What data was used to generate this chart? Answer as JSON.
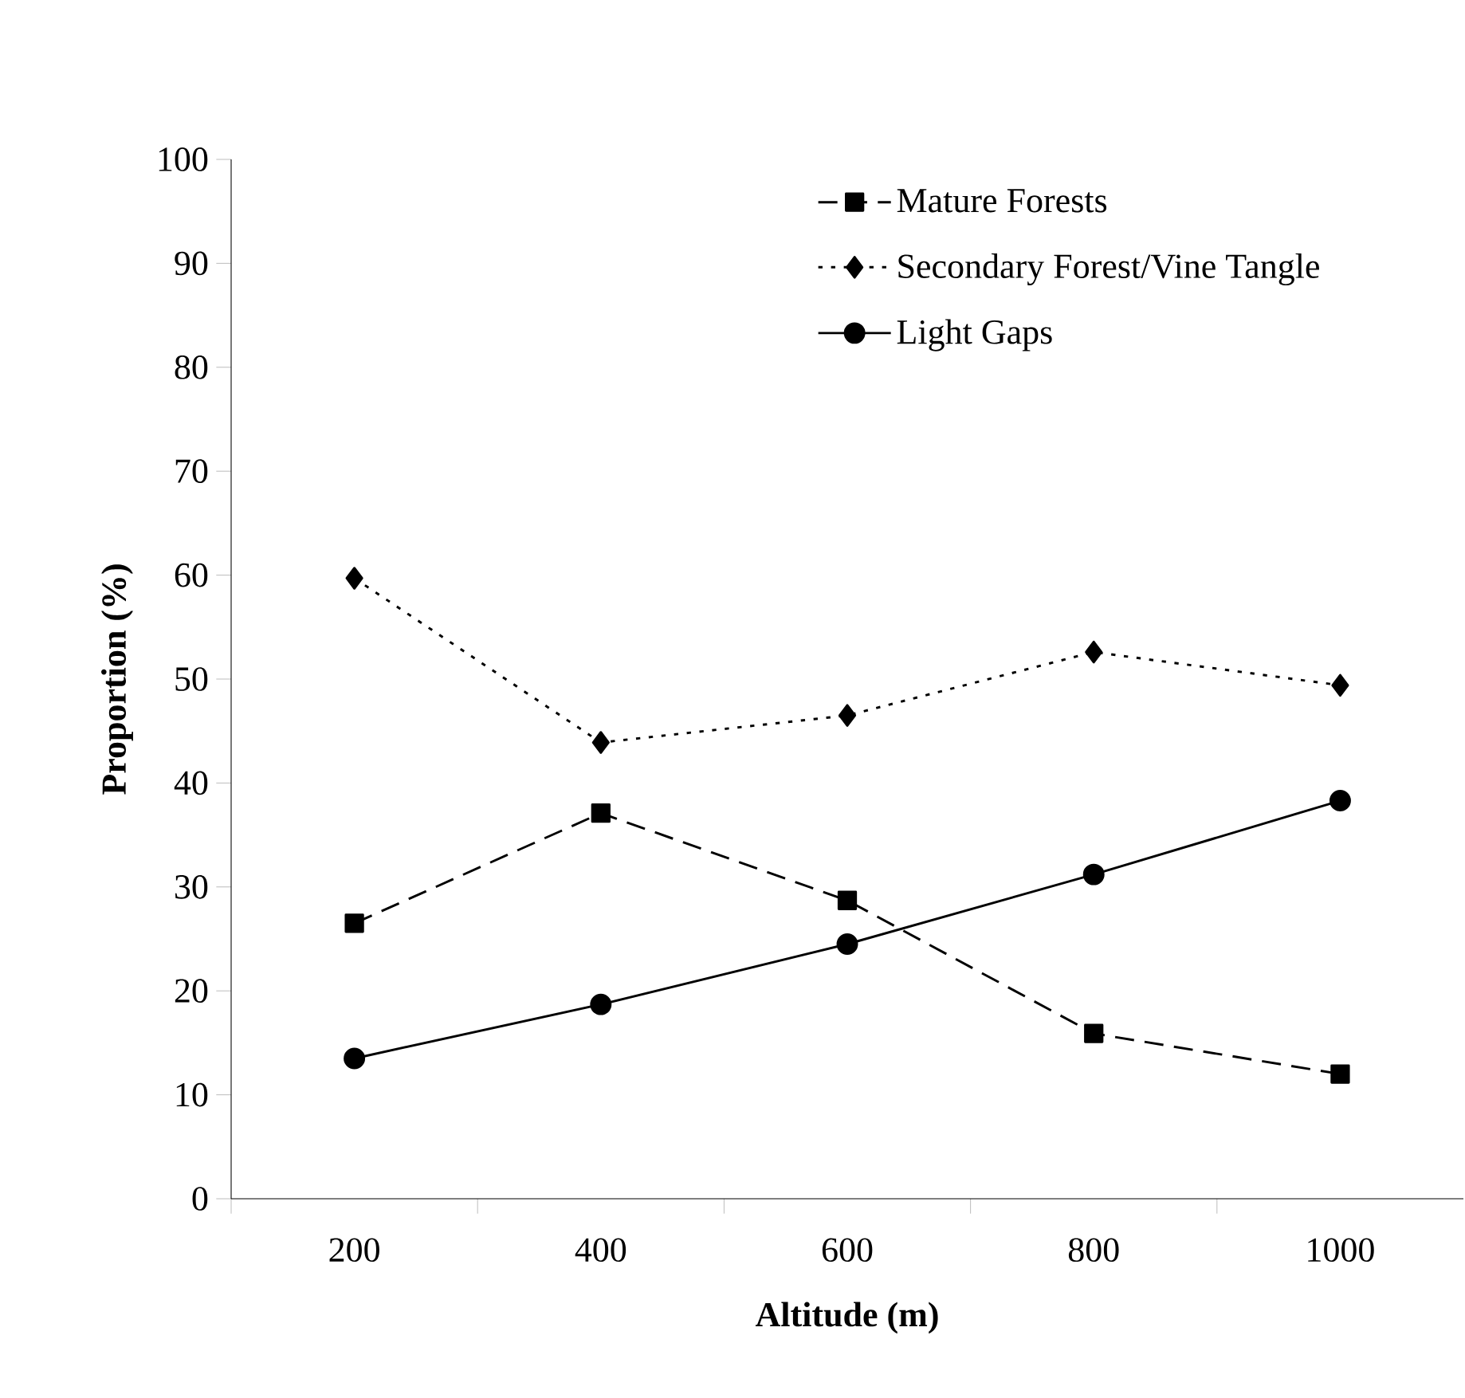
{
  "chart_data": {
    "type": "line",
    "xlabel": "Altitude (m)",
    "ylabel": "Proportion (%)",
    "categories": [
      "200",
      "400",
      "600",
      "800",
      "1000"
    ],
    "series": [
      {
        "name": "Mature Forests",
        "color": "#000000",
        "marker": "square",
        "line_style": "dashed",
        "values": [
          26.5,
          37.1,
          28.7,
          15.9,
          12.0
        ]
      },
      {
        "name": "Secondary Forest/Vine Tangle",
        "color": "#000000",
        "marker": "diamond",
        "line_style": "dotted",
        "values": [
          59.7,
          43.9,
          46.5,
          52.6,
          49.4
        ]
      },
      {
        "name": "Light Gaps",
        "color": "#000000",
        "marker": "circle",
        "line_style": "solid",
        "values": [
          13.5,
          18.7,
          24.5,
          31.2,
          38.3
        ]
      }
    ],
    "ylim": [
      0,
      100
    ],
    "yticks": [
      0,
      10,
      20,
      30,
      40,
      50,
      60,
      70,
      80,
      90,
      100
    ],
    "grid": false,
    "legend": "top right"
  }
}
